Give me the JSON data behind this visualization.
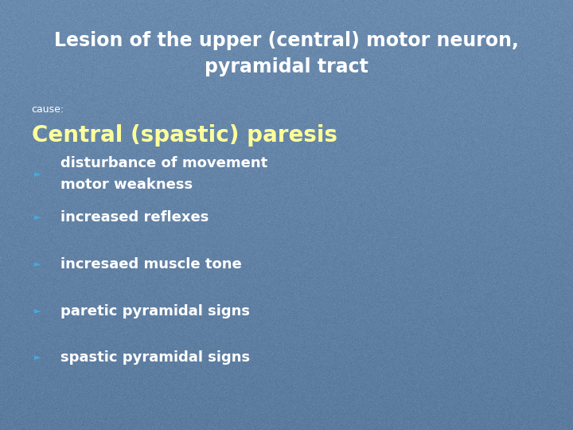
{
  "title_line1": "Lesion of the upper (central) motor neuron,",
  "title_line2": "pyramidal tract",
  "title_color": "#FFFFFF",
  "title_fontsize": 17,
  "cause_label": "cause:",
  "cause_color": "#FFFFFF",
  "cause_fontsize": 9,
  "subtitle": "Central (spastic) paresis",
  "subtitle_color": "#FFFF99",
  "subtitle_fontsize": 20,
  "bullet_marker_color": "#44AADD",
  "bullet_text_color": "#FFFFFF",
  "bullet_fontsize": 13,
  "bullets": [
    "disturbance of movement\nmotor weakness",
    "increased reflexes",
    "incresaed muscle tone",
    "paretic pyramidal signs",
    "spastic pyramidal signs"
  ],
  "bg_color": "#6B8BAE"
}
